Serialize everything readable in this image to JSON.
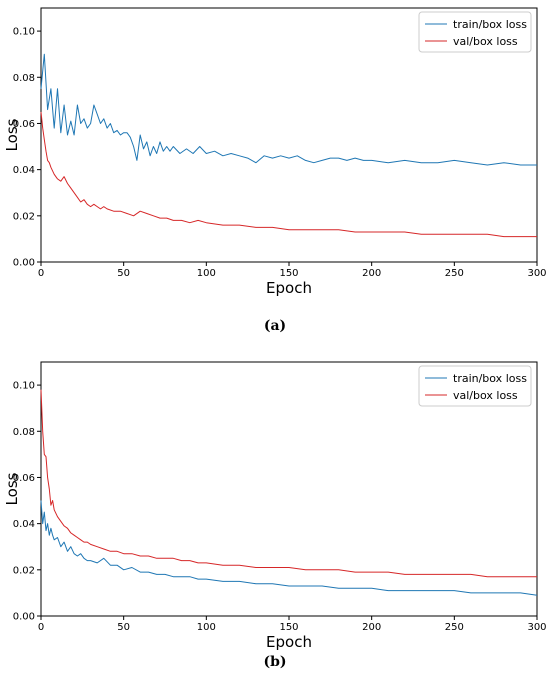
{
  "chart_data": [
    {
      "type": "line",
      "caption": "(a)",
      "xlabel": "Epoch",
      "ylabel": "Loss",
      "xlim": [
        0,
        300
      ],
      "ylim": [
        0,
        0.11
      ],
      "xticks": [
        0,
        50,
        100,
        150,
        200,
        250,
        300
      ],
      "xtick_labels": [
        "0",
        "50",
        "100",
        "150",
        "200",
        "250",
        "300"
      ],
      "yticks": [
        0,
        0.02,
        0.04,
        0.06,
        0.08,
        0.1
      ],
      "ytick_labels": [
        "0.00",
        "0.02",
        "0.04",
        "0.06",
        "0.08",
        "0.10"
      ],
      "legend_position": "top-right",
      "grid": false,
      "series": [
        {
          "name": "train/box loss",
          "color": "#1f77b4",
          "x": [
            0,
            2,
            4,
            6,
            8,
            10,
            12,
            14,
            16,
            18,
            20,
            22,
            24,
            26,
            28,
            30,
            32,
            34,
            36,
            38,
            40,
            42,
            44,
            46,
            48,
            50,
            52,
            54,
            56,
            58,
            60,
            62,
            64,
            66,
            68,
            70,
            72,
            74,
            76,
            78,
            80,
            84,
            88,
            92,
            96,
            100,
            105,
            110,
            115,
            120,
            125,
            130,
            135,
            140,
            145,
            150,
            155,
            160,
            165,
            170,
            175,
            180,
            185,
            190,
            195,
            200,
            210,
            220,
            230,
            240,
            250,
            260,
            270,
            280,
            290,
            300
          ],
          "y": [
            0.075,
            0.09,
            0.066,
            0.075,
            0.058,
            0.075,
            0.056,
            0.068,
            0.055,
            0.061,
            0.055,
            0.068,
            0.06,
            0.062,
            0.058,
            0.06,
            0.068,
            0.064,
            0.06,
            0.062,
            0.058,
            0.06,
            0.056,
            0.057,
            0.055,
            0.056,
            0.056,
            0.054,
            0.05,
            0.044,
            0.055,
            0.049,
            0.052,
            0.046,
            0.05,
            0.047,
            0.052,
            0.048,
            0.05,
            0.048,
            0.05,
            0.047,
            0.049,
            0.047,
            0.05,
            0.047,
            0.048,
            0.046,
            0.047,
            0.046,
            0.045,
            0.043,
            0.046,
            0.045,
            0.046,
            0.045,
            0.046,
            0.044,
            0.043,
            0.044,
            0.045,
            0.045,
            0.044,
            0.045,
            0.044,
            0.044,
            0.043,
            0.044,
            0.043,
            0.043,
            0.044,
            0.043,
            0.042,
            0.043,
            0.042,
            0.042
          ]
        },
        {
          "name": "val/box loss",
          "color": "#d62728",
          "x": [
            0,
            1,
            2,
            3,
            4,
            5,
            6,
            8,
            10,
            12,
            14,
            16,
            18,
            20,
            22,
            24,
            26,
            28,
            30,
            32,
            34,
            36,
            38,
            40,
            44,
            48,
            52,
            56,
            60,
            64,
            68,
            72,
            76,
            80,
            85,
            90,
            95,
            100,
            110,
            120,
            130,
            140,
            150,
            160,
            170,
            180,
            190,
            200,
            210,
            220,
            230,
            240,
            250,
            260,
            270,
            280,
            290,
            300
          ],
          "y": [
            0.065,
            0.058,
            0.053,
            0.048,
            0.044,
            0.043,
            0.041,
            0.038,
            0.036,
            0.035,
            0.037,
            0.034,
            0.032,
            0.03,
            0.028,
            0.026,
            0.027,
            0.025,
            0.024,
            0.025,
            0.024,
            0.023,
            0.024,
            0.023,
            0.022,
            0.022,
            0.021,
            0.02,
            0.022,
            0.021,
            0.02,
            0.019,
            0.019,
            0.018,
            0.018,
            0.017,
            0.018,
            0.017,
            0.016,
            0.016,
            0.015,
            0.015,
            0.014,
            0.014,
            0.014,
            0.014,
            0.013,
            0.013,
            0.013,
            0.013,
            0.012,
            0.012,
            0.012,
            0.012,
            0.012,
            0.011,
            0.011,
            0.011
          ]
        }
      ]
    },
    {
      "type": "line",
      "caption": "(b)",
      "xlabel": "Epoch",
      "ylabel": "Loss",
      "xlim": [
        0,
        300
      ],
      "ylim": [
        0,
        0.11
      ],
      "xticks": [
        0,
        50,
        100,
        150,
        200,
        250,
        300
      ],
      "xtick_labels": [
        "0",
        "50",
        "100",
        "150",
        "200",
        "250",
        "300"
      ],
      "yticks": [
        0,
        0.02,
        0.04,
        0.06,
        0.08,
        0.1
      ],
      "ytick_labels": [
        "0.00",
        "0.02",
        "0.04",
        "0.06",
        "0.08",
        "0.10"
      ],
      "legend_position": "top-right",
      "grid": false,
      "series": [
        {
          "name": "train/box loss",
          "color": "#1f77b4",
          "x": [
            0,
            1,
            2,
            3,
            4,
            5,
            6,
            7,
            8,
            10,
            12,
            14,
            16,
            18,
            20,
            22,
            24,
            26,
            28,
            30,
            34,
            38,
            42,
            46,
            50,
            55,
            60,
            65,
            70,
            75,
            80,
            85,
            90,
            95,
            100,
            110,
            120,
            130,
            140,
            150,
            160,
            170,
            180,
            190,
            200,
            210,
            220,
            230,
            240,
            250,
            260,
            270,
            280,
            290,
            300
          ],
          "y": [
            0.05,
            0.04,
            0.045,
            0.037,
            0.04,
            0.035,
            0.038,
            0.035,
            0.033,
            0.034,
            0.03,
            0.032,
            0.028,
            0.03,
            0.027,
            0.026,
            0.027,
            0.025,
            0.024,
            0.024,
            0.023,
            0.025,
            0.022,
            0.022,
            0.02,
            0.021,
            0.019,
            0.019,
            0.018,
            0.018,
            0.017,
            0.017,
            0.017,
            0.016,
            0.016,
            0.015,
            0.015,
            0.014,
            0.014,
            0.013,
            0.013,
            0.013,
            0.012,
            0.012,
            0.012,
            0.011,
            0.011,
            0.011,
            0.011,
            0.011,
            0.01,
            0.01,
            0.01,
            0.01,
            0.009
          ]
        },
        {
          "name": "val/box loss",
          "color": "#d62728",
          "x": [
            0,
            1,
            2,
            3,
            4,
            5,
            6,
            7,
            8,
            10,
            12,
            14,
            16,
            18,
            20,
            22,
            24,
            26,
            28,
            30,
            34,
            38,
            42,
            46,
            50,
            55,
            60,
            65,
            70,
            75,
            80,
            85,
            90,
            95,
            100,
            110,
            120,
            130,
            140,
            150,
            160,
            170,
            180,
            190,
            200,
            210,
            220,
            230,
            240,
            250,
            260,
            270,
            280,
            290,
            300
          ],
          "y": [
            0.098,
            0.08,
            0.07,
            0.069,
            0.06,
            0.055,
            0.048,
            0.05,
            0.046,
            0.043,
            0.041,
            0.039,
            0.038,
            0.036,
            0.035,
            0.034,
            0.033,
            0.032,
            0.032,
            0.031,
            0.03,
            0.029,
            0.028,
            0.028,
            0.027,
            0.027,
            0.026,
            0.026,
            0.025,
            0.025,
            0.025,
            0.024,
            0.024,
            0.023,
            0.023,
            0.022,
            0.022,
            0.021,
            0.021,
            0.021,
            0.02,
            0.02,
            0.02,
            0.019,
            0.019,
            0.019,
            0.018,
            0.018,
            0.018,
            0.018,
            0.018,
            0.017,
            0.017,
            0.017,
            0.017
          ]
        }
      ]
    }
  ]
}
